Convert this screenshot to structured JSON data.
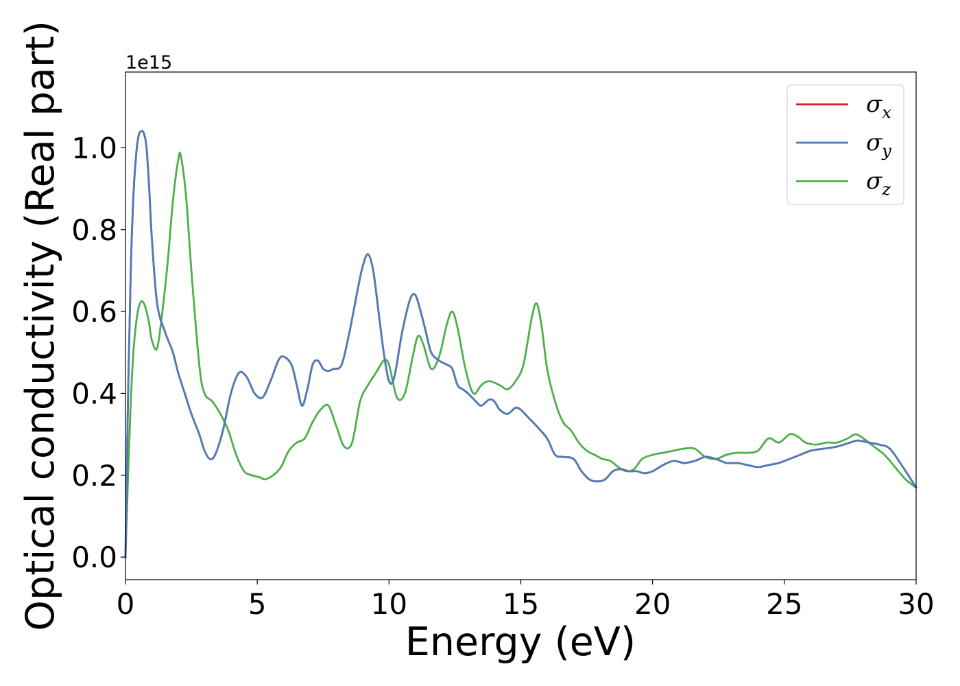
{
  "chart_data": {
    "type": "line",
    "xlabel": "Energy (eV)",
    "ylabel": "Optical conductivity (Real part)",
    "y_offset_text": "1e15",
    "xlim": [
      0,
      30
    ],
    "ylim": [
      -0.055,
      1.185
    ],
    "x_ticks": [
      0,
      5,
      10,
      15,
      20,
      25,
      30
    ],
    "x_tick_labels": [
      "0",
      "5",
      "10",
      "15",
      "20",
      "25",
      "30"
    ],
    "y_ticks": [
      0.0,
      0.2,
      0.4,
      0.6,
      0.8,
      1.0
    ],
    "y_tick_labels": [
      "0.0",
      "0.2",
      "0.4",
      "0.6",
      "0.8",
      "1.0"
    ],
    "grid": false,
    "legend_position": "top-right",
    "series": [
      {
        "name": "σ_x",
        "symbol": "σ",
        "subscript": "x",
        "color": "#e41a1c",
        "x": [
          0,
          0.1,
          0.2,
          0.3,
          0.4,
          0.5,
          0.6,
          0.7,
          0.8,
          0.9,
          1.0,
          1.2,
          1.5,
          1.8,
          2.0,
          2.3,
          2.5,
          2.8,
          3.0,
          3.2,
          3.4,
          3.7,
          4.0,
          4.3,
          4.6,
          4.9,
          5.2,
          5.5,
          5.8,
          6.0,
          6.3,
          6.5,
          6.7,
          6.9,
          7.1,
          7.3,
          7.5,
          7.7,
          7.9,
          8.2,
          8.5,
          8.8,
          9.0,
          9.2,
          9.4,
          9.6,
          9.8,
          10.0,
          10.2,
          10.5,
          10.8,
          11.0,
          11.2,
          11.4,
          11.6,
          11.9,
          12.2,
          12.4,
          12.6,
          12.8,
          13.0,
          13.3,
          13.5,
          13.8,
          14.0,
          14.2,
          14.5,
          14.8,
          15.0,
          15.3,
          15.6,
          16.0,
          16.3,
          16.6,
          17.0,
          17.3,
          17.6,
          17.9,
          18.2,
          18.5,
          18.8,
          19.1,
          19.4,
          19.7,
          20.0,
          20.4,
          20.8,
          21.2,
          21.6,
          22.0,
          22.4,
          22.8,
          23.2,
          23.6,
          24.0,
          24.4,
          24.8,
          25.2,
          25.6,
          26.0,
          26.5,
          27.0,
          27.5,
          27.8,
          28.2,
          28.6,
          29.0,
          29.5,
          30.0
        ],
        "y": [
          0,
          0.4,
          0.7,
          0.88,
          0.98,
          1.03,
          1.04,
          1.035,
          1.0,
          0.9,
          0.78,
          0.62,
          0.55,
          0.5,
          0.45,
          0.39,
          0.35,
          0.3,
          0.26,
          0.24,
          0.25,
          0.31,
          0.4,
          0.45,
          0.44,
          0.4,
          0.39,
          0.43,
          0.48,
          0.49,
          0.47,
          0.42,
          0.37,
          0.41,
          0.47,
          0.48,
          0.46,
          0.455,
          0.46,
          0.47,
          0.55,
          0.65,
          0.71,
          0.74,
          0.7,
          0.6,
          0.5,
          0.43,
          0.44,
          0.55,
          0.63,
          0.64,
          0.6,
          0.55,
          0.5,
          0.48,
          0.47,
          0.46,
          0.42,
          0.41,
          0.4,
          0.38,
          0.37,
          0.385,
          0.38,
          0.36,
          0.35,
          0.365,
          0.36,
          0.34,
          0.32,
          0.29,
          0.25,
          0.245,
          0.24,
          0.21,
          0.19,
          0.185,
          0.19,
          0.21,
          0.215,
          0.21,
          0.21,
          0.205,
          0.21,
          0.225,
          0.235,
          0.23,
          0.235,
          0.245,
          0.24,
          0.23,
          0.23,
          0.225,
          0.22,
          0.225,
          0.23,
          0.24,
          0.25,
          0.26,
          0.265,
          0.27,
          0.28,
          0.285,
          0.28,
          0.275,
          0.265,
          0.22,
          0.17
        ]
      },
      {
        "name": "σ_y",
        "symbol": "σ",
        "subscript": "y",
        "color": "#4b7db8",
        "x": [
          0,
          0.1,
          0.2,
          0.3,
          0.4,
          0.5,
          0.6,
          0.7,
          0.8,
          0.9,
          1.0,
          1.2,
          1.5,
          1.8,
          2.0,
          2.3,
          2.5,
          2.8,
          3.0,
          3.2,
          3.4,
          3.7,
          4.0,
          4.3,
          4.6,
          4.9,
          5.2,
          5.5,
          5.8,
          6.0,
          6.3,
          6.5,
          6.7,
          6.9,
          7.1,
          7.3,
          7.5,
          7.7,
          7.9,
          8.2,
          8.5,
          8.8,
          9.0,
          9.2,
          9.4,
          9.6,
          9.8,
          10.0,
          10.2,
          10.5,
          10.8,
          11.0,
          11.2,
          11.4,
          11.6,
          11.9,
          12.2,
          12.4,
          12.6,
          12.8,
          13.0,
          13.3,
          13.5,
          13.8,
          14.0,
          14.2,
          14.5,
          14.8,
          15.0,
          15.3,
          15.6,
          16.0,
          16.3,
          16.6,
          17.0,
          17.3,
          17.6,
          17.9,
          18.2,
          18.5,
          18.8,
          19.1,
          19.4,
          19.7,
          20.0,
          20.4,
          20.8,
          21.2,
          21.6,
          22.0,
          22.4,
          22.8,
          23.2,
          23.6,
          24.0,
          24.4,
          24.8,
          25.2,
          25.6,
          26.0,
          26.5,
          27.0,
          27.5,
          27.8,
          28.2,
          28.6,
          29.0,
          29.5,
          30.0
        ],
        "y": [
          0,
          0.4,
          0.7,
          0.88,
          0.98,
          1.03,
          1.04,
          1.035,
          1.0,
          0.9,
          0.78,
          0.62,
          0.55,
          0.5,
          0.45,
          0.39,
          0.35,
          0.3,
          0.26,
          0.24,
          0.25,
          0.31,
          0.4,
          0.45,
          0.44,
          0.4,
          0.39,
          0.43,
          0.48,
          0.49,
          0.47,
          0.42,
          0.37,
          0.41,
          0.47,
          0.48,
          0.46,
          0.455,
          0.46,
          0.47,
          0.55,
          0.65,
          0.71,
          0.74,
          0.7,
          0.6,
          0.5,
          0.43,
          0.44,
          0.55,
          0.63,
          0.64,
          0.6,
          0.55,
          0.5,
          0.48,
          0.47,
          0.46,
          0.42,
          0.41,
          0.4,
          0.38,
          0.37,
          0.385,
          0.38,
          0.36,
          0.35,
          0.365,
          0.36,
          0.34,
          0.32,
          0.29,
          0.25,
          0.245,
          0.24,
          0.21,
          0.19,
          0.185,
          0.19,
          0.21,
          0.215,
          0.21,
          0.21,
          0.205,
          0.21,
          0.225,
          0.235,
          0.23,
          0.235,
          0.245,
          0.24,
          0.23,
          0.23,
          0.225,
          0.22,
          0.225,
          0.23,
          0.24,
          0.25,
          0.26,
          0.265,
          0.27,
          0.28,
          0.285,
          0.28,
          0.275,
          0.265,
          0.22,
          0.17
        ]
      },
      {
        "name": "σ_z",
        "symbol": "σ",
        "subscript": "z",
        "color": "#4daf4a",
        "x": [
          0,
          0.1,
          0.2,
          0.3,
          0.4,
          0.5,
          0.6,
          0.7,
          0.8,
          0.9,
          1.0,
          1.2,
          1.4,
          1.6,
          1.8,
          2.0,
          2.1,
          2.3,
          2.5,
          2.8,
          3.0,
          3.3,
          3.6,
          3.9,
          4.2,
          4.5,
          4.8,
          5.1,
          5.3,
          5.6,
          5.9,
          6.2,
          6.5,
          6.8,
          7.1,
          7.4,
          7.7,
          8.0,
          8.3,
          8.6,
          8.9,
          9.2,
          9.5,
          9.8,
          10.0,
          10.3,
          10.6,
          10.9,
          11.1,
          11.3,
          11.6,
          11.9,
          12.2,
          12.4,
          12.6,
          12.9,
          13.2,
          13.5,
          13.8,
          14.2,
          14.5,
          14.8,
          15.1,
          15.4,
          15.6,
          15.8,
          16.0,
          16.3,
          16.6,
          16.9,
          17.2,
          17.5,
          17.8,
          18.1,
          18.4,
          18.7,
          19.0,
          19.3,
          19.6,
          20.0,
          20.4,
          20.8,
          21.2,
          21.6,
          22.0,
          22.4,
          22.8,
          23.2,
          23.6,
          24.0,
          24.4,
          24.8,
          25.2,
          25.5,
          25.8,
          26.2,
          26.6,
          27.0,
          27.4,
          27.7,
          28.0,
          28.4,
          28.8,
          29.2,
          29.6,
          30.0
        ],
        "y": [
          0,
          0.2,
          0.38,
          0.5,
          0.57,
          0.61,
          0.625,
          0.62,
          0.6,
          0.57,
          0.53,
          0.51,
          0.6,
          0.72,
          0.87,
          0.97,
          0.98,
          0.88,
          0.7,
          0.47,
          0.4,
          0.38,
          0.35,
          0.31,
          0.25,
          0.21,
          0.2,
          0.195,
          0.19,
          0.2,
          0.22,
          0.26,
          0.28,
          0.29,
          0.33,
          0.36,
          0.37,
          0.32,
          0.27,
          0.28,
          0.38,
          0.42,
          0.45,
          0.48,
          0.47,
          0.39,
          0.4,
          0.49,
          0.54,
          0.52,
          0.46,
          0.49,
          0.57,
          0.6,
          0.56,
          0.46,
          0.4,
          0.42,
          0.43,
          0.42,
          0.41,
          0.43,
          0.47,
          0.58,
          0.62,
          0.56,
          0.46,
          0.38,
          0.33,
          0.31,
          0.28,
          0.26,
          0.25,
          0.24,
          0.235,
          0.22,
          0.21,
          0.215,
          0.24,
          0.25,
          0.255,
          0.26,
          0.265,
          0.265,
          0.245,
          0.24,
          0.25,
          0.255,
          0.255,
          0.26,
          0.29,
          0.28,
          0.3,
          0.295,
          0.28,
          0.275,
          0.28,
          0.28,
          0.29,
          0.3,
          0.29,
          0.27,
          0.25,
          0.22,
          0.19,
          0.17
        ]
      }
    ]
  }
}
